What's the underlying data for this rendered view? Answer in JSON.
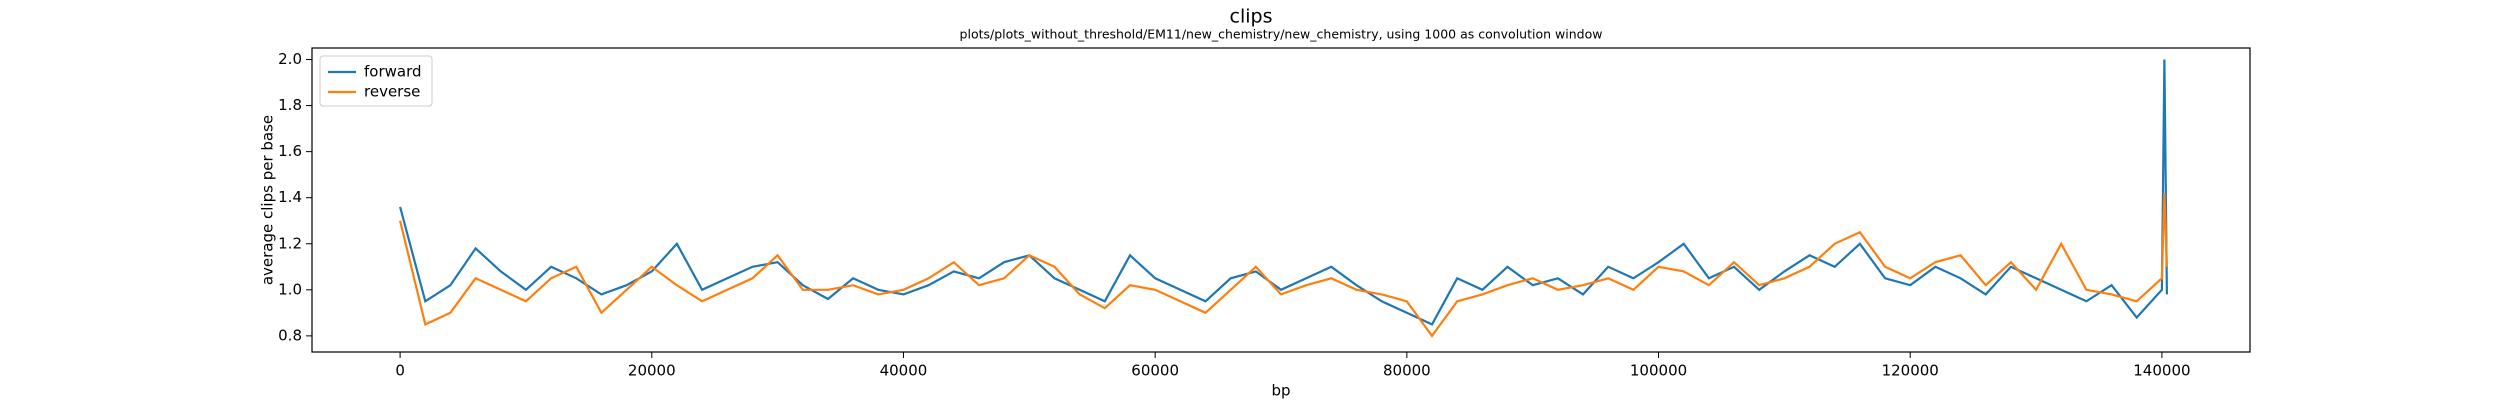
{
  "chart_data": {
    "type": "line",
    "title": "clips",
    "subtitle": "plots/plots_without_threshold/EM11/new_chemistry/new_chemistry, using 1000 as convolution window",
    "x_label": "bp",
    "y_label": "average clips per base",
    "x": [
      0,
      2000,
      4000,
      6000,
      8000,
      10000,
      12000,
      14000,
      16000,
      18000,
      20000,
      22000,
      24000,
      26000,
      28000,
      30000,
      32000,
      34000,
      36000,
      38000,
      40000,
      42000,
      44000,
      46000,
      48000,
      50000,
      52000,
      54000,
      56000,
      58000,
      60000,
      62000,
      64000,
      66000,
      68000,
      70000,
      72000,
      74000,
      76000,
      78000,
      80000,
      82000,
      84000,
      86000,
      88000,
      90000,
      92000,
      94000,
      96000,
      98000,
      100000,
      102000,
      104000,
      106000,
      108000,
      110000,
      112000,
      114000,
      116000,
      118000,
      120000,
      122000,
      124000,
      126000,
      128000,
      130000,
      132000,
      134000,
      136000,
      138000,
      140000,
      140200,
      140400
    ],
    "series": [
      {
        "name": "forward",
        "color": "#1f77b4",
        "values": [
          1.36,
          0.95,
          1.02,
          1.18,
          1.08,
          1.0,
          1.1,
          1.05,
          0.98,
          1.02,
          1.08,
          1.2,
          1.0,
          1.05,
          1.1,
          1.12,
          1.02,
          0.96,
          1.05,
          1.0,
          0.98,
          1.02,
          1.08,
          1.05,
          1.12,
          1.15,
          1.05,
          1.0,
          0.95,
          1.15,
          1.05,
          1.0,
          0.95,
          1.05,
          1.08,
          1.0,
          1.05,
          1.1,
          1.02,
          0.95,
          0.9,
          0.85,
          1.05,
          1.0,
          1.1,
          1.02,
          1.05,
          0.98,
          1.1,
          1.05,
          1.12,
          1.2,
          1.05,
          1.1,
          1.0,
          1.08,
          1.15,
          1.1,
          1.2,
          1.05,
          1.02,
          1.1,
          1.05,
          0.98,
          1.1,
          1.05,
          1.0,
          0.95,
          1.02,
          0.88,
          1.0,
          2.0,
          0.98
        ]
      },
      {
        "name": "reverse",
        "color": "#ff7f0e",
        "values": [
          1.3,
          0.85,
          0.9,
          1.05,
          1.0,
          0.95,
          1.05,
          1.1,
          0.9,
          1.0,
          1.1,
          1.02,
          0.95,
          1.0,
          1.05,
          1.15,
          1.0,
          1.0,
          1.02,
          0.98,
          1.0,
          1.05,
          1.12,
          1.02,
          1.05,
          1.15,
          1.1,
          0.98,
          0.92,
          1.02,
          1.0,
          0.95,
          0.9,
          1.0,
          1.1,
          0.98,
          1.02,
          1.05,
          1.0,
          0.98,
          0.95,
          0.8,
          0.95,
          0.98,
          1.02,
          1.05,
          1.0,
          1.02,
          1.05,
          1.0,
          1.1,
          1.08,
          1.02,
          1.12,
          1.02,
          1.05,
          1.1,
          1.2,
          1.25,
          1.1,
          1.05,
          1.12,
          1.15,
          1.02,
          1.12,
          1.0,
          1.2,
          1.0,
          0.98,
          0.95,
          1.05,
          1.42,
          1.1
        ]
      }
    ],
    "xlim": [
      -7000,
      147000
    ],
    "ylim": [
      0.73,
      2.05
    ],
    "xticks": [
      0,
      20000,
      40000,
      60000,
      80000,
      100000,
      120000,
      140000
    ],
    "yticks": [
      0.8,
      {
        "value": 1.0,
        "label": "1.0"
      },
      1.2,
      1.4,
      1.6,
      1.8,
      {
        "value": 2.0,
        "label": "2.0"
      }
    ],
    "legend": "upper left"
  }
}
